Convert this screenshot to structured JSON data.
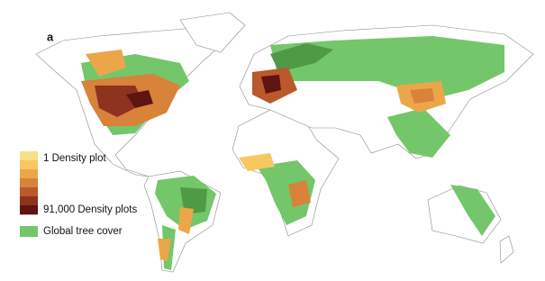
{
  "panel_label": "a",
  "density_scale": {
    "colors": [
      "#f7e08a",
      "#f5c860",
      "#eca64a",
      "#d8823a",
      "#b9592c",
      "#8e3320",
      "#5e1410"
    ],
    "min_label": "1 Density plot",
    "max_label": "91,000 Density plots"
  },
  "tree_cover": {
    "color": "#74c66a",
    "label": "Global tree cover"
  }
}
